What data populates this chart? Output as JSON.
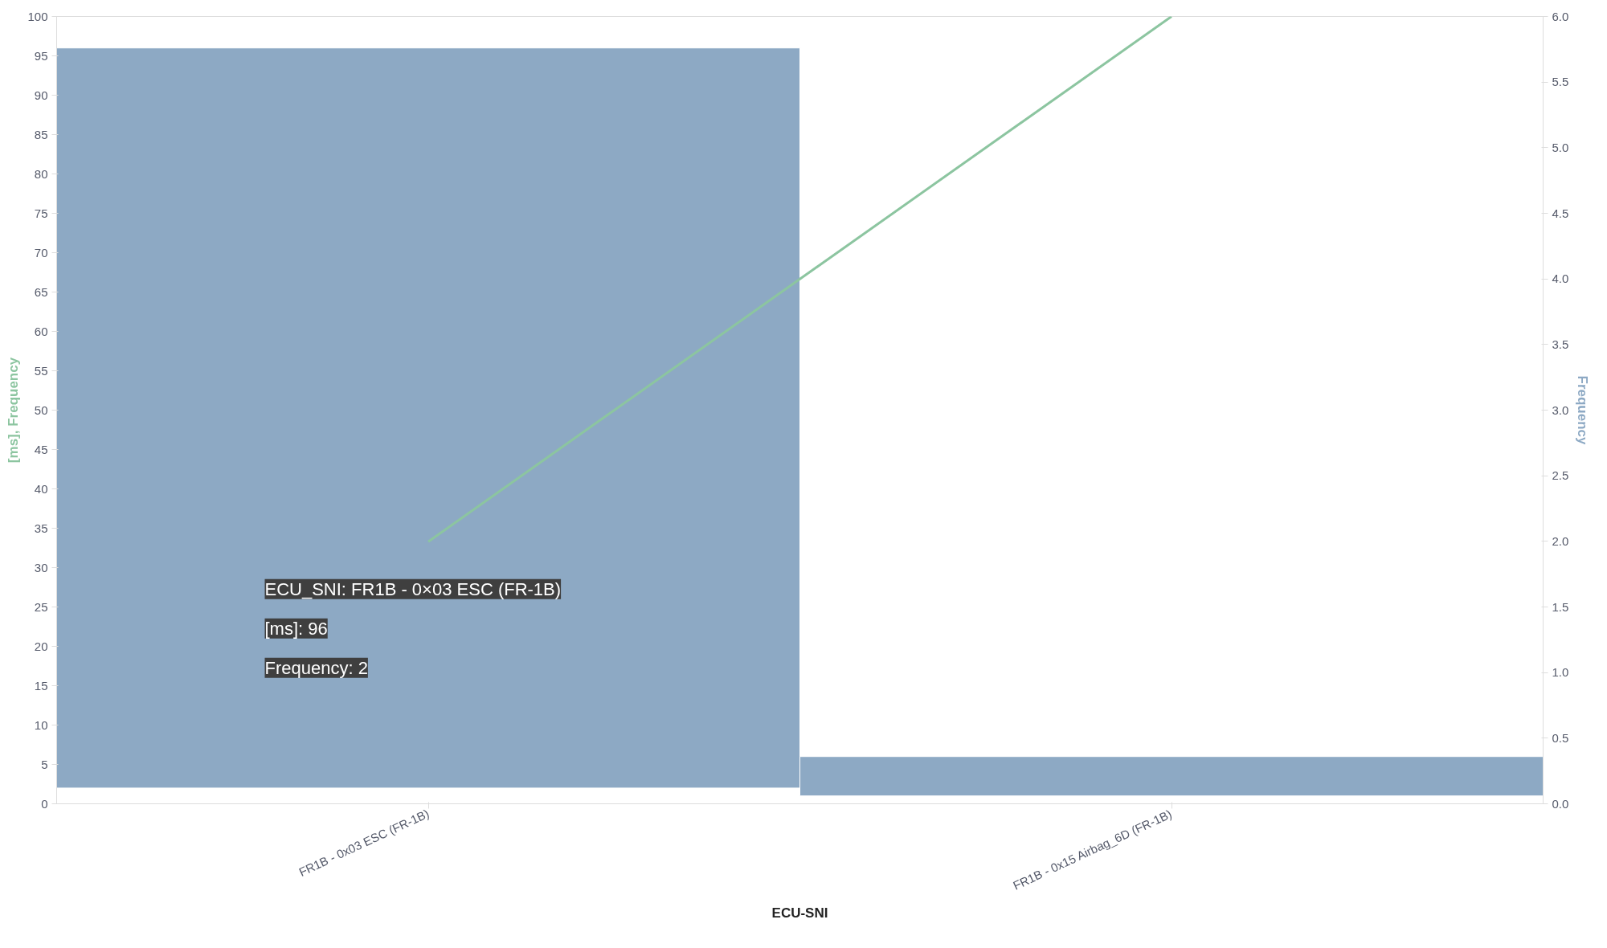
{
  "chart_data": {
    "type": "bar",
    "xlabel": "ECU-SNI",
    "ylabel": "[ms], Frequency",
    "y2label": "Frequency",
    "categories": [
      "FR1B - 0x03 ESC (FR-1B)",
      "FR1B - 0x15 Airbag_6D (FR-1B)"
    ],
    "series": [
      {
        "color": "#8da9c4",
        "values": [
          94,
          5
        ],
        "base": [
          2,
          1
        ]
      },
      {
        "type": "line",
        "color": "#8cc5a0",
        "values": [
          33.3,
          100
        ]
      }
    ],
    "ylim": [
      0,
      100
    ],
    "yticks": [
      0,
      5,
      10,
      15,
      20,
      25,
      30,
      35,
      40,
      45,
      50,
      55,
      60,
      65,
      70,
      75,
      80,
      85,
      90,
      95,
      100
    ],
    "y2lim": [
      0,
      6
    ],
    "y2ticks": [
      {
        "value": 0,
        "label": "0.0"
      },
      {
        "value": 0.5,
        "label": "0.5"
      },
      {
        "value": 1,
        "label": "1.0"
      },
      {
        "value": 1.5,
        "label": "1.5"
      },
      {
        "value": 2,
        "label": "2.0"
      },
      {
        "value": 2.5,
        "label": "2.5"
      },
      {
        "value": 3,
        "label": "3.0"
      },
      {
        "value": 3.5,
        "label": "3.5"
      },
      {
        "value": 4,
        "label": "4.0"
      },
      {
        "value": 4.5,
        "label": "4.5"
      },
      {
        "value": 5,
        "label": "5.0"
      },
      {
        "value": 5.5,
        "label": "5.5"
      },
      {
        "value": 6,
        "label": "6.0"
      }
    ],
    "annotations": [
      "ECU_SNI: FR1B - 0×03 ESC (FR-1B)",
      "[ms]: 96",
      "Frequency: 2"
    ],
    "grid": false
  }
}
